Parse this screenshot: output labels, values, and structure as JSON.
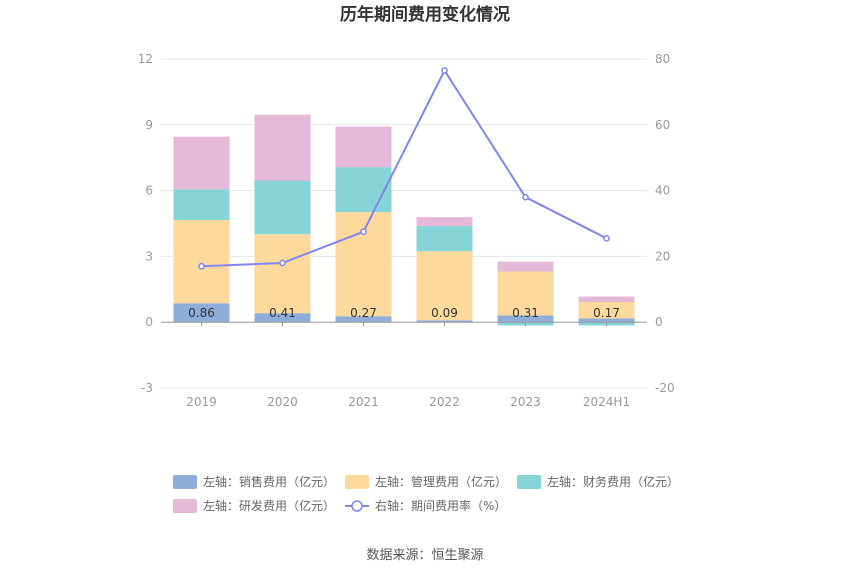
{
  "title": "历年期间费用变化情况",
  "source": "数据来源：恒生聚源",
  "colors": {
    "sales": "#8eadd9",
    "admin": "#fdd99b",
    "finance": "#86d4d8",
    "rd": "#e6b9d9",
    "rate": "#7f86f0"
  },
  "chart_data": {
    "type": "bar",
    "stacked": true,
    "categories": [
      "2019",
      "2020",
      "2021",
      "2022",
      "2023",
      "2024H1"
    ],
    "left_axis": {
      "ylim": [
        -3,
        12
      ],
      "ticks": [
        -3,
        0,
        3,
        6,
        9,
        12
      ]
    },
    "right_axis": {
      "ylim": [
        -20,
        80
      ],
      "ticks": [
        -20,
        0,
        20,
        40,
        60,
        80
      ]
    },
    "series": [
      {
        "name": "左轴：销售费用（亿元）",
        "key": "sales",
        "axis": "left",
        "kind": "bar",
        "values": [
          0.86,
          0.41,
          0.27,
          0.09,
          0.31,
          0.17
        ],
        "labels": [
          "0.86",
          "0.41",
          "0.27",
          "0.09",
          "0.31",
          "0.17"
        ]
      },
      {
        "name": "左轴：管理费用（亿元）",
        "key": "admin",
        "axis": "left",
        "kind": "bar",
        "values": [
          3.8,
          3.6,
          4.75,
          3.15,
          2.0,
          0.75
        ]
      },
      {
        "name": "左轴：财务费用（亿元）",
        "key": "finance",
        "axis": "left",
        "kind": "bar",
        "values": [
          1.4,
          2.45,
          2.05,
          1.15,
          -0.15,
          -0.15
        ]
      },
      {
        "name": "左轴：研发费用（亿元）",
        "key": "rd",
        "axis": "left",
        "kind": "bar",
        "values": [
          2.4,
          3.0,
          1.85,
          0.4,
          0.45,
          0.25
        ]
      },
      {
        "name": "右轴：期间费用率（%）",
        "key": "rate",
        "axis": "right",
        "kind": "line",
        "values": [
          17.0,
          18.0,
          27.5,
          76.5,
          38.0,
          25.5
        ]
      }
    ],
    "grid": true,
    "legend_position": "bottom"
  }
}
